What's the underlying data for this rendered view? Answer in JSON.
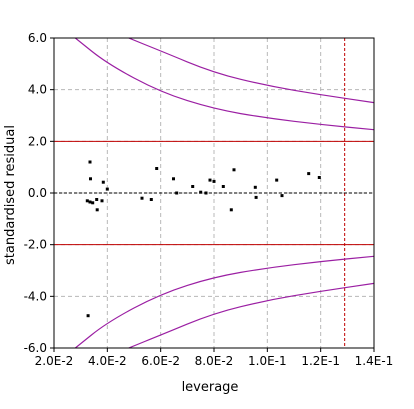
{
  "chart_data": {
    "type": "scatter",
    "xlabel": "leverage",
    "ylabel": "standardised residual",
    "xlim": [
      0.02,
      0.14
    ],
    "ylim": [
      -6.0,
      6.0
    ],
    "x_ticks": [
      0.02,
      0.04,
      0.06,
      0.08,
      0.1,
      0.12,
      0.14
    ],
    "x_tick_labels": [
      "2.0E-2",
      "4.0E-2",
      "6.0E-2",
      "8.0E-2",
      "1.0E-1",
      "1.2E-1",
      "1.4E-1"
    ],
    "y_ticks": [
      -6.0,
      -4.0,
      -2.0,
      0.0,
      2.0,
      4.0,
      6.0
    ],
    "y_tick_labels": [
      "-6.0",
      "-4.0",
      "-2.0",
      "0.0",
      "2.0",
      "4.0",
      "6.0"
    ],
    "grid": true,
    "points": [
      {
        "x": 0.0335,
        "y": 1.2
      },
      {
        "x": 0.0337,
        "y": 0.55
      },
      {
        "x": 0.0325,
        "y": -0.3
      },
      {
        "x": 0.0335,
        "y": -0.35
      },
      {
        "x": 0.0345,
        "y": -0.38
      },
      {
        "x": 0.036,
        "y": -0.25
      },
      {
        "x": 0.0362,
        "y": -0.65
      },
      {
        "x": 0.038,
        "y": -0.3
      },
      {
        "x": 0.0385,
        "y": 0.42
      },
      {
        "x": 0.04,
        "y": 0.15
      },
      {
        "x": 0.0328,
        "y": -4.75
      },
      {
        "x": 0.053,
        "y": -0.2
      },
      {
        "x": 0.0565,
        "y": -0.25
      },
      {
        "x": 0.0585,
        "y": 0.95
      },
      {
        "x": 0.0648,
        "y": 0.55
      },
      {
        "x": 0.066,
        "y": 0.0
      },
      {
        "x": 0.072,
        "y": 0.25
      },
      {
        "x": 0.075,
        "y": 0.03
      },
      {
        "x": 0.077,
        "y": 0.0
      },
      {
        "x": 0.0785,
        "y": 0.5
      },
      {
        "x": 0.08,
        "y": 0.45
      },
      {
        "x": 0.0835,
        "y": 0.25
      },
      {
        "x": 0.0865,
        "y": -0.65
      },
      {
        "x": 0.0875,
        "y": 0.9
      },
      {
        "x": 0.0955,
        "y": 0.22
      },
      {
        "x": 0.0958,
        "y": -0.17
      },
      {
        "x": 0.1035,
        "y": 0.5
      },
      {
        "x": 0.1055,
        "y": -0.1
      },
      {
        "x": 0.1155,
        "y": 0.75
      },
      {
        "x": 0.1195,
        "y": 0.6
      }
    ],
    "reference_lines": {
      "horizontal_red": [
        2.0,
        -2.0
      ],
      "horizontal_black_dashed": [
        0.0
      ],
      "vertical_red": [
        0.129
      ]
    },
    "curves": [
      {
        "points": [
          [
            0.048,
            6.0
          ],
          [
            0.06,
            5.5
          ],
          [
            0.08,
            4.65
          ],
          [
            0.1,
            4.15
          ],
          [
            0.12,
            3.8
          ],
          [
            0.14,
            3.5
          ]
        ]
      },
      {
        "points": [
          [
            0.028,
            6.0
          ],
          [
            0.04,
            5.0
          ],
          [
            0.06,
            3.9
          ],
          [
            0.08,
            3.25
          ],
          [
            0.1,
            2.9
          ],
          [
            0.12,
            2.65
          ],
          [
            0.14,
            2.45
          ]
        ]
      },
      {
        "points": [
          [
            0.048,
            -6.0
          ],
          [
            0.06,
            -5.5
          ],
          [
            0.08,
            -4.65
          ],
          [
            0.1,
            -4.15
          ],
          [
            0.12,
            -3.8
          ],
          [
            0.14,
            -3.5
          ]
        ]
      },
      {
        "points": [
          [
            0.028,
            -6.0
          ],
          [
            0.04,
            -5.0
          ],
          [
            0.06,
            -3.9
          ],
          [
            0.08,
            -3.25
          ],
          [
            0.1,
            -2.9
          ],
          [
            0.12,
            -2.65
          ],
          [
            0.14,
            -2.45
          ]
        ]
      }
    ],
    "colors": {
      "points": "#000000",
      "curves": "#9b1fa3",
      "reference_red": "#c00000",
      "grid": "#b8b8b8",
      "zero_line": "#000000"
    }
  }
}
